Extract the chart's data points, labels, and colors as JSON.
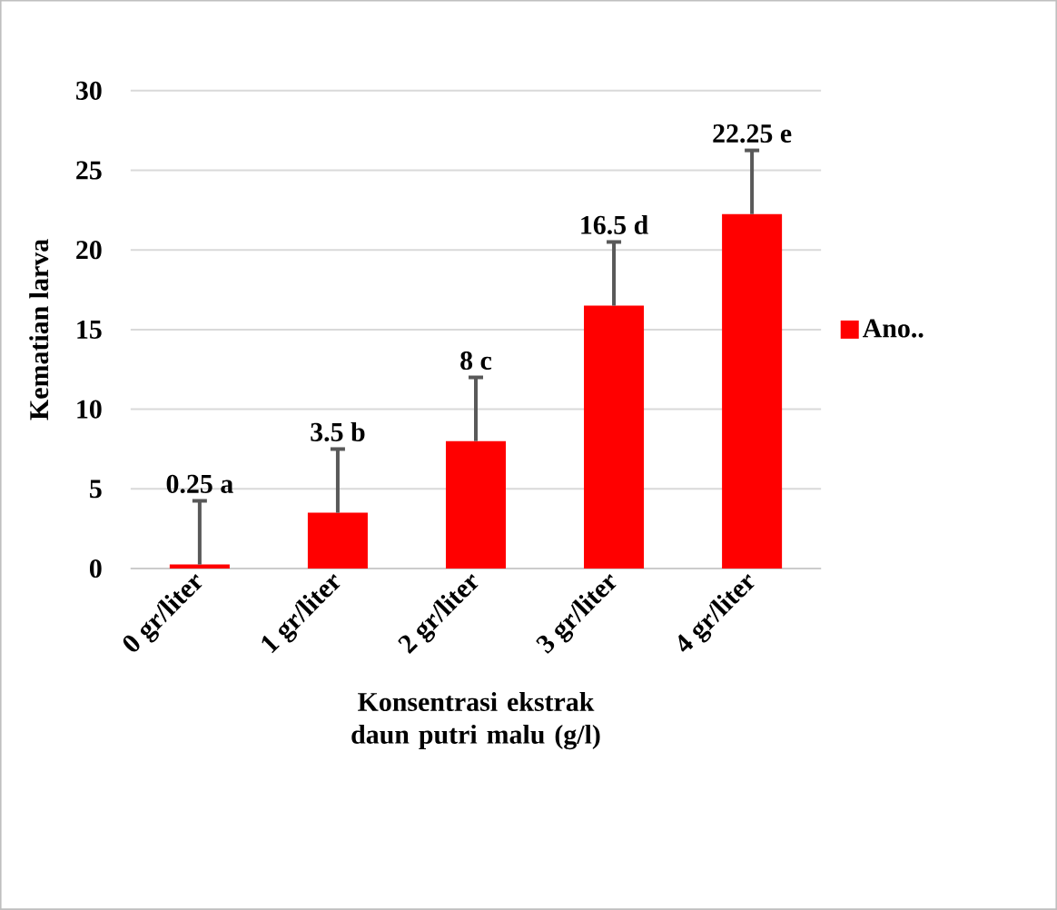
{
  "chart_data": {
    "type": "bar",
    "xlabel": "Konsentrasi ekstrak daun putri malu (g/l)",
    "ylabel": "Kematian larva",
    "categories": [
      "0 gr/liter",
      "1 gr/liter",
      "2 gr/liter",
      "3 gr/liter",
      "4 gr/liter"
    ],
    "series": [
      {
        "name": "Ano..",
        "color": "#ff0000",
        "values": [
          0.25,
          3.5,
          8,
          16.5,
          22.25
        ],
        "errors": [
          [
            0.25,
            4.25
          ],
          [
            3.5,
            7.5
          ],
          [
            8,
            12
          ],
          [
            16.5,
            20.5
          ],
          [
            22.25,
            26.25
          ]
        ],
        "value_labels": [
          "0.25 a",
          "3.5 b",
          "8 c",
          "16.5 d",
          "22.25 e"
        ]
      }
    ],
    "ylim": [
      0,
      30
    ],
    "yticks": [
      0,
      5,
      10,
      15,
      20,
      25,
      30
    ],
    "grid": "y",
    "legend": "right"
  }
}
